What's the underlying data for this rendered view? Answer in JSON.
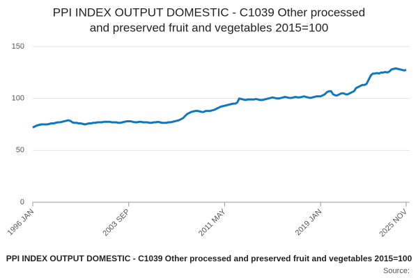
{
  "chart_data": {
    "type": "line",
    "title": [
      "PPI INDEX OUTPUT DOMESTIC - C1039 Other processed",
      "and preserved fruit and vegetables 2015=100"
    ],
    "footer": "PPI INDEX OUTPUT DOMESTIC - C1039 Other processed and preserved fruit and vegetables 2015=100",
    "source": "Source:",
    "color": "#1077bd",
    "ylim": [
      0,
      150
    ],
    "yticks": [
      0,
      50,
      100,
      150
    ],
    "grid": true,
    "categories": [
      "1996 JAN",
      null,
      null,
      null,
      null,
      null,
      null,
      null,
      null,
      null,
      null,
      null,
      null,
      null,
      null,
      null,
      null,
      null,
      null,
      null,
      null,
      null,
      null,
      null,
      null,
      null,
      null,
      null,
      null,
      null,
      null,
      null,
      null,
      null,
      null,
      null,
      null,
      null,
      null,
      null,
      null,
      null,
      null,
      null,
      null,
      null,
      "2003 SEP",
      null,
      null,
      null,
      null,
      null,
      null,
      null,
      null,
      null,
      null,
      null,
      null,
      null,
      null,
      null,
      null,
      null,
      null,
      null,
      null,
      null,
      null,
      null,
      null,
      null,
      null,
      null,
      null,
      null,
      null,
      null,
      null,
      null,
      null,
      null,
      null,
      null,
      null,
      null,
      null,
      null,
      null,
      null,
      null,
      null,
      "2011 MAY",
      null,
      null,
      null,
      null,
      null,
      null,
      null,
      null,
      null,
      null,
      null,
      null,
      null,
      null,
      null,
      null,
      null,
      null,
      null,
      null,
      null,
      null,
      null,
      null,
      null,
      null,
      null,
      null,
      null,
      null,
      null,
      null,
      null,
      null,
      null,
      null,
      null,
      null,
      null,
      null,
      null,
      null,
      null,
      null,
      null,
      "2019 JAN",
      null,
      null,
      null,
      null,
      null,
      null,
      null,
      null,
      null,
      null,
      null,
      null,
      null,
      null,
      null,
      null,
      null,
      null,
      null,
      null,
      null,
      null,
      null,
      null,
      null,
      null,
      null,
      null,
      null,
      null,
      null,
      null,
      null,
      null,
      null,
      null,
      null,
      null,
      null,
      null,
      "2025 NOV"
    ],
    "values": [
      72,
      73,
      74,
      74.5,
      75,
      75,
      75,
      75,
      75.5,
      76,
      76,
      76.5,
      77,
      77,
      77.5,
      78,
      78.5,
      79,
      78.5,
      77,
      76.5,
      76.5,
      76,
      76,
      75.5,
      75,
      75.5,
      76,
      76,
      76.5,
      76.5,
      77,
      77,
      77,
      77.5,
      77.5,
      77.5,
      77.5,
      77,
      77,
      77,
      76.5,
      76.5,
      77,
      77.5,
      78,
      78,
      78,
      77.5,
      77,
      77,
      77.5,
      77.5,
      77,
      77,
      77,
      76.5,
      76.5,
      77,
      77,
      77.5,
      77,
      76.5,
      76.5,
      76.5,
      77,
      77,
      77.5,
      78,
      78.5,
      79,
      80,
      81,
      83,
      85,
      86,
      87,
      87.5,
      88,
      88,
      87.5,
      87,
      87,
      88,
      88,
      88,
      88.5,
      89,
      90,
      91,
      92,
      92.5,
      93,
      93.5,
      94,
      94.5,
      95,
      95,
      96,
      100,
      99.5,
      99,
      98.5,
      99,
      99,
      99,
      99,
      99.5,
      99,
      98.5,
      98.5,
      99,
      99.5,
      100,
      100.5,
      101,
      100.5,
      100,
      100,
      100.5,
      101,
      101.5,
      101,
      100.5,
      100.5,
      101,
      101.5,
      101,
      101,
      101.5,
      102,
      101.5,
      101,
      100.5,
      101,
      101.5,
      102,
      102,
      102,
      103,
      104,
      106,
      107,
      107,
      104,
      103,
      103,
      104,
      105,
      105,
      104,
      104,
      105,
      106,
      107,
      110,
      111,
      112,
      113,
      113,
      114,
      118,
      122,
      124,
      124,
      124.5,
      124,
      125,
      125,
      125.5,
      125,
      126,
      128,
      128.5,
      129,
      128.5,
      128,
      127.5,
      127,
      127.5
    ]
  }
}
